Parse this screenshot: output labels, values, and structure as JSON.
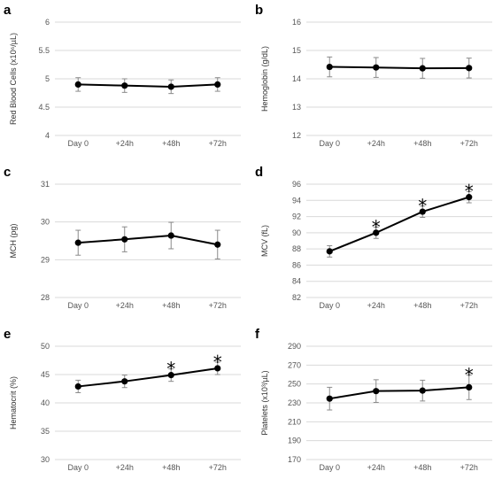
{
  "chart_data": [
    {
      "type": "line",
      "panel_label": "a",
      "ylabel": "Red Blood Cells (x10⁶/µL)",
      "categories": [
        "Day 0",
        "+24h",
        "+48h",
        "+72h"
      ],
      "ylim": [
        4,
        6
      ],
      "yticks": [
        "4",
        "4.5",
        "5",
        "5.5",
        "6"
      ],
      "grid": true,
      "values": [
        4.9,
        4.88,
        4.86,
        4.9
      ],
      "errors": [
        0.12,
        0.12,
        0.12,
        0.12
      ],
      "significant": [
        false,
        false,
        false,
        false
      ]
    },
    {
      "type": "line",
      "panel_label": "b",
      "ylabel": "Hemoglobin (g/dL)",
      "categories": [
        "Day 0",
        "+24h",
        "+48h",
        "+72h"
      ],
      "ylim": [
        12,
        16
      ],
      "yticks": [
        "12",
        "13",
        "14",
        "15",
        "16"
      ],
      "grid": true,
      "values": [
        14.42,
        14.4,
        14.37,
        14.38
      ],
      "errors": [
        0.35,
        0.35,
        0.35,
        0.35
      ],
      "significant": [
        false,
        false,
        false,
        false
      ]
    },
    {
      "type": "line",
      "panel_label": "c",
      "ylabel": "MCH (pg)",
      "categories": [
        "Day 0",
        "+24h",
        "+48h",
        "+72h"
      ],
      "ylim": [
        28,
        31
      ],
      "yticks": [
        "28",
        "29",
        "30",
        "31"
      ],
      "grid": true,
      "values": [
        29.45,
        29.54,
        29.64,
        29.4
      ],
      "errors": [
        0.33,
        0.33,
        0.35,
        0.38
      ],
      "significant": [
        false,
        false,
        false,
        false
      ]
    },
    {
      "type": "line",
      "panel_label": "d",
      "ylabel": "MCV (fL)",
      "categories": [
        "Day 0",
        "+24h",
        "+48h",
        "+72h"
      ],
      "ylim": [
        82,
        96
      ],
      "yticks": [
        "82",
        "84",
        "86",
        "88",
        "90",
        "92",
        "94",
        "96"
      ],
      "grid": true,
      "values": [
        87.7,
        90.0,
        92.6,
        94.4
      ],
      "errors": [
        0.7,
        0.7,
        0.7,
        0.7
      ],
      "significant": [
        false,
        true,
        true,
        true
      ]
    },
    {
      "type": "line",
      "panel_label": "e",
      "ylabel": "Hematocrit (%)",
      "categories": [
        "Day 0",
        "+24h",
        "+48h",
        "+72h"
      ],
      "ylim": [
        30,
        50
      ],
      "yticks": [
        "30",
        "35",
        "40",
        "45",
        "50"
      ],
      "grid": true,
      "values": [
        42.9,
        43.8,
        44.9,
        46.1
      ],
      "errors": [
        1.1,
        1.1,
        1.1,
        1.1
      ],
      "significant": [
        false,
        false,
        true,
        true
      ]
    },
    {
      "type": "line",
      "panel_label": "f",
      "ylabel": "Platelets (x10³/µL)",
      "categories": [
        "Day 0",
        "+24h",
        "+48h",
        "+72h"
      ],
      "ylim": [
        170,
        290
      ],
      "yticks": [
        "170",
        "190",
        "210",
        "230",
        "250",
        "270",
        "290"
      ],
      "grid": true,
      "values": [
        234.5,
        242.5,
        243,
        246.5
      ],
      "errors": [
        12,
        12,
        11,
        13
      ],
      "significant": [
        false,
        false,
        false,
        true
      ]
    }
  ],
  "star_symbol": "*"
}
